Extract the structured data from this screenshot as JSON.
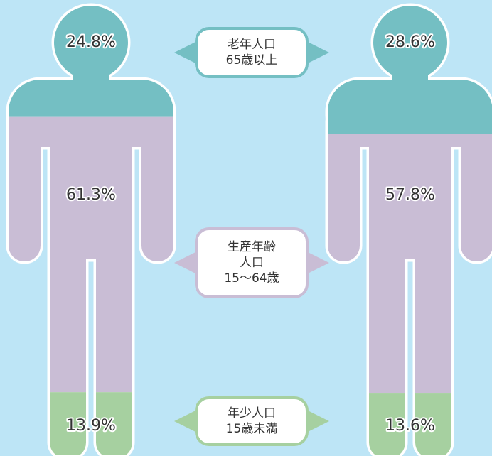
{
  "chart_data": {
    "type": "pictograph",
    "categories": [
      [
        "老年人口",
        "65歳以上"
      ],
      [
        "生産年齢",
        "人口",
        "15〜64歳"
      ],
      [
        "年少人口",
        "15歳未満"
      ]
    ],
    "colors": [
      "#74bfc3",
      "#c9bdd5",
      "#a6d0a0"
    ],
    "series": [
      {
        "values": [
          24.8,
          61.3,
          13.9
        ],
        "value_labels": [
          "24.8%",
          "61.3%",
          "13.9%"
        ]
      },
      {
        "values": [
          28.6,
          57.8,
          13.6
        ],
        "value_labels": [
          "28.6%",
          "57.8%",
          "13.6%"
        ]
      }
    ]
  }
}
